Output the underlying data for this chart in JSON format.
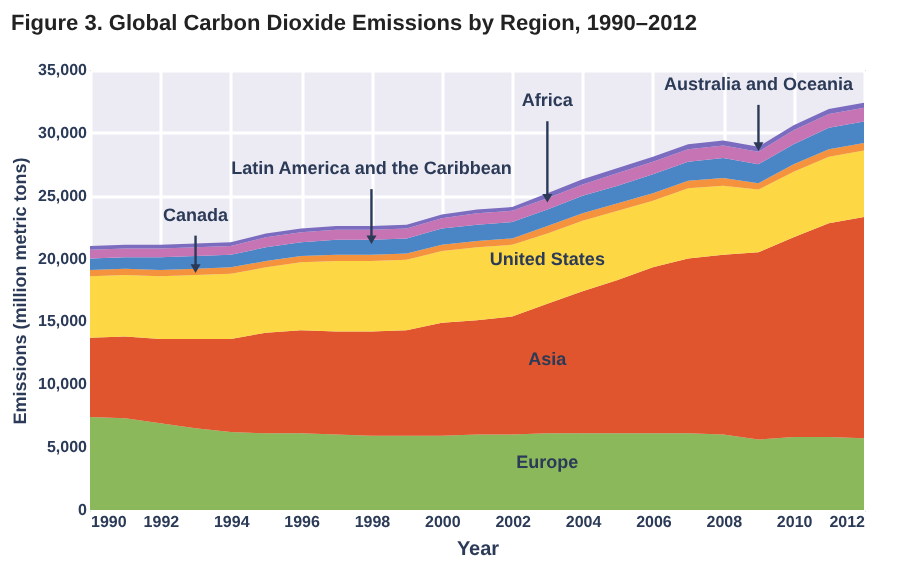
{
  "chart_data": {
    "type": "area",
    "stacked": true,
    "title": "Figure 3. Global Carbon Dioxide Emissions by Region, 1990–2012",
    "xlabel": "Year",
    "ylabel": "Emissions (million metric tons)",
    "x": [
      1990,
      1991,
      1992,
      1993,
      1994,
      1995,
      1996,
      1997,
      1998,
      1999,
      2000,
      2001,
      2002,
      2003,
      2004,
      2005,
      2006,
      2007,
      2008,
      2009,
      2010,
      2011,
      2012
    ],
    "series": [
      {
        "name": "Europe",
        "color": "#8cb85c",
        "values": [
          7400,
          7300,
          6900,
          6500,
          6200,
          6100,
          6100,
          6000,
          5900,
          5900,
          5900,
          6000,
          6000,
          6100,
          6100,
          6100,
          6100,
          6100,
          6000,
          5600,
          5800,
          5800,
          5700
        ]
      },
      {
        "name": "Asia",
        "color": "#e0542e",
        "values": [
          6300,
          6500,
          6700,
          7100,
          7400,
          8000,
          8200,
          8200,
          8300,
          8400,
          9000,
          9100,
          9400,
          10300,
          11300,
          12200,
          13200,
          13900,
          14300,
          14900,
          15900,
          17000,
          17600
        ]
      },
      {
        "name": "United States",
        "color": "#fdd744",
        "values": [
          4900,
          4900,
          5000,
          5100,
          5200,
          5200,
          5400,
          5600,
          5600,
          5600,
          5700,
          5800,
          5700,
          5600,
          5600,
          5500,
          5300,
          5600,
          5500,
          5000,
          5200,
          5300,
          5300
        ]
      },
      {
        "name": "Canada",
        "color": "#f5923e",
        "values": [
          500,
          500,
          500,
          500,
          500,
          500,
          500,
          500,
          500,
          500,
          500,
          500,
          500,
          600,
          600,
          600,
          600,
          600,
          600,
          500,
          600,
          600,
          600
        ]
      },
      {
        "name": "Latin America and the Caribbean",
        "color": "#4a86c5",
        "values": [
          900,
          900,
          1000,
          1000,
          1000,
          1100,
          1100,
          1200,
          1200,
          1200,
          1300,
          1300,
          1300,
          1300,
          1400,
          1400,
          1500,
          1500,
          1600,
          1500,
          1600,
          1700,
          1700
        ]
      },
      {
        "name": "Africa",
        "color": "#c774b4",
        "values": [
          700,
          700,
          700,
          700,
          700,
          800,
          800,
          800,
          800,
          800,
          800,
          900,
          900,
          900,
          900,
          1000,
          1000,
          1000,
          1000,
          1000,
          1100,
          1100,
          1100
        ]
      },
      {
        "name": "Australia and Oceania",
        "color": "#7b6cc0",
        "values": [
          300,
          300,
          300,
          300,
          300,
          300,
          300,
          300,
          300,
          300,
          300,
          300,
          300,
          400,
          400,
          400,
          400,
          400,
          400,
          400,
          400,
          400,
          400
        ]
      }
    ],
    "xlim": [
      1990,
      2012
    ],
    "xticks": [
      1990,
      1992,
      1994,
      1996,
      1998,
      2000,
      2002,
      2004,
      2006,
      2008,
      2010,
      2012
    ],
    "ylim": [
      0,
      35000
    ],
    "yticks": [
      0,
      {
        "value": 5000,
        "label": "5,000"
      },
      {
        "value": 10000,
        "label": "10,000"
      },
      {
        "value": 15000,
        "label": "15,000"
      },
      {
        "value": 20000,
        "label": "20,000"
      },
      {
        "value": 25000,
        "label": "25,000"
      },
      {
        "value": 30000,
        "label": "30,000"
      },
      {
        "value": 35000,
        "label": "35,000"
      }
    ],
    "grid": true,
    "legend": false
  }
}
